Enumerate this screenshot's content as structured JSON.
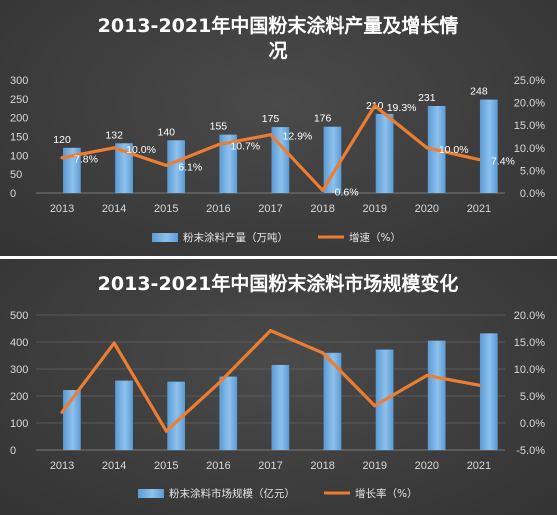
{
  "colors": {
    "bar": "#5b9bd5",
    "bar_light": "#8ec1ec",
    "line": "#ed7d31",
    "grid": "#5a5a5a",
    "text": "#d9d9d9"
  },
  "chart_data": [
    {
      "type": "bar",
      "title_line1": "2013-2021年中国粉末涂料产量及增长情",
      "title_line2": "况",
      "categories": [
        "2013",
        "2014",
        "2015",
        "2016",
        "2017",
        "2018",
        "2019",
        "2020",
        "2021"
      ],
      "series": [
        {
          "name": "粉末涂料产量（万吨）",
          "type": "bar",
          "axis": "left",
          "values": [
            120,
            132,
            140,
            155,
            175,
            176,
            210,
            231,
            248
          ],
          "labels": [
            "120",
            "132",
            "140",
            "155",
            "175",
            "176",
            "210",
            "231",
            "248"
          ]
        },
        {
          "name": "增速（%）",
          "type": "line",
          "axis": "right",
          "values": [
            7.8,
            10.0,
            6.1,
            10.7,
            12.9,
            0.6,
            19.3,
            10.0,
            7.4
          ],
          "labels": [
            "7.8%",
            "10.0%",
            "6.1%",
            "10.7%",
            "12.9%",
            "0.6%",
            "19.3%",
            "10.0%",
            "7.4%"
          ]
        }
      ],
      "y_left": {
        "min": 0,
        "max": 300,
        "step": 50,
        "ticks": [
          "0",
          "50",
          "100",
          "150",
          "200",
          "250",
          "300"
        ]
      },
      "y_right": {
        "min": 0,
        "max": 25,
        "step": 5,
        "ticks": [
          "0.0%",
          "5.0%",
          "10.0%",
          "15.0%",
          "20.0%",
          "25.0%"
        ]
      },
      "grid": false,
      "legend_position": "bottom"
    },
    {
      "type": "bar",
      "title_line1": "2013-2021年中国粉末涂料市场规模变化",
      "title_line2": "",
      "categories": [
        "2013",
        "2014",
        "2015",
        "2016",
        "2017",
        "2018",
        "2019",
        "2020",
        "2021"
      ],
      "series": [
        {
          "name": "粉末涂料市场规模（亿元）",
          "type": "bar",
          "axis": "left",
          "values": [
            222,
            257,
            253,
            272,
            315,
            360,
            372,
            405,
            432
          ],
          "labels": []
        },
        {
          "name": "增长率（%）",
          "type": "line",
          "axis": "right",
          "values": [
            2.0,
            14.8,
            -1.5,
            7.3,
            17.1,
            13.0,
            3.2,
            8.8,
            7.0
          ],
          "labels": []
        }
      ],
      "y_left": {
        "min": 0,
        "max": 500,
        "step": 100,
        "ticks": [
          "0",
          "100",
          "200",
          "300",
          "400",
          "500"
        ]
      },
      "y_right": {
        "min": -5,
        "max": 20,
        "step": 5,
        "ticks": [
          "-5.0%",
          "0.0%",
          "5.0%",
          "10.0%",
          "15.0%",
          "20.0%"
        ]
      },
      "grid": true,
      "legend_position": "bottom"
    }
  ]
}
